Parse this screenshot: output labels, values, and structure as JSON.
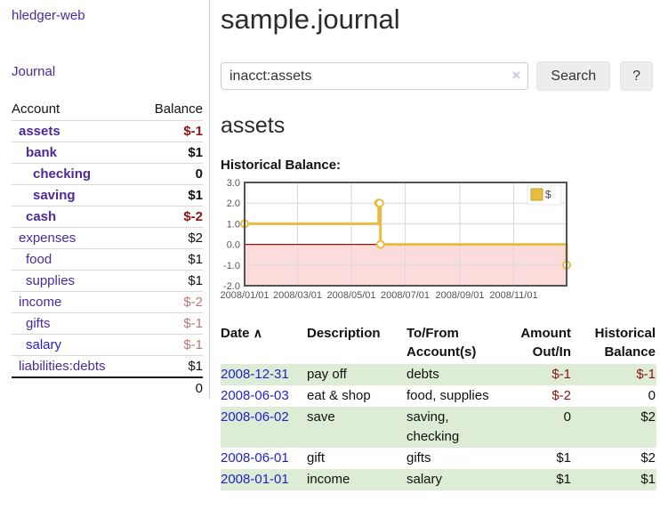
{
  "app": {
    "brand": "hledger-web"
  },
  "icons": {
    "sort_asc": "∧",
    "clear": "×"
  },
  "colors": {
    "link_purple": "#4b2a9b",
    "link_blue": "#2222cc",
    "negative_strong": "#8b1313",
    "negative_soft": "#b97676",
    "row_stripe_green": "#ddecd4",
    "divider_gray": "#cccccc"
  },
  "sidebar": {
    "journal_label": "Journal",
    "table": {
      "headers": [
        "Account",
        "Balance"
      ],
      "rows": [
        {
          "name": "assets",
          "balance": "$-1",
          "indent": 1,
          "bold": true,
          "balance_class": "neg-strong"
        },
        {
          "name": "bank",
          "balance": "$1",
          "indent": 2,
          "bold": true,
          "balance_class": ""
        },
        {
          "name": "checking",
          "balance": "0",
          "indent": 3,
          "bold": true,
          "balance_class": ""
        },
        {
          "name": "saving",
          "balance": "$1",
          "indent": 3,
          "bold": true,
          "balance_class": ""
        },
        {
          "name": "cash",
          "balance": "$-2",
          "indent": 2,
          "bold": true,
          "balance_class": "neg-strong"
        },
        {
          "name": "expenses",
          "balance": "$2",
          "indent": 1,
          "bold": false,
          "balance_class": ""
        },
        {
          "name": "food",
          "balance": "$1",
          "indent": 2,
          "bold": false,
          "balance_class": ""
        },
        {
          "name": "supplies",
          "balance": "$1",
          "indent": 2,
          "bold": false,
          "balance_class": ""
        },
        {
          "name": "income",
          "balance": "$-2",
          "indent": 1,
          "bold": false,
          "balance_class": "neg-soft"
        },
        {
          "name": "gifts",
          "balance": "$-1",
          "indent": 2,
          "bold": false,
          "balance_class": "neg-soft"
        },
        {
          "name": "salary",
          "balance": "$-1",
          "indent": 2,
          "bold": false,
          "balance_class": "neg-soft",
          "link": "blue"
        },
        {
          "name": "liabilities:debts",
          "balance": "$1",
          "indent": 1,
          "bold": false,
          "balance_class": ""
        }
      ],
      "total": "0"
    }
  },
  "main": {
    "title": "sample.journal",
    "search": {
      "value": "inacct:assets",
      "button_label": "Search",
      "help_label": "?"
    },
    "account_heading": "assets",
    "chart_label": "Historical Balance:"
  },
  "chart_data": {
    "type": "line",
    "step": true,
    "title": "Historical Balance:",
    "series": [
      {
        "name": "$",
        "color": "#e8bc40",
        "points": [
          [
            "2008-01-01",
            1
          ],
          [
            "2008-06-01",
            2
          ],
          [
            "2008-06-02",
            2
          ],
          [
            "2008-06-03",
            0
          ],
          [
            "2008-12-31",
            -1
          ]
        ]
      }
    ],
    "xlim": [
      "2008-01-01",
      "2008-12-31"
    ],
    "ylim": [
      -2,
      3
    ],
    "x_ticks": [
      "2008/01/01",
      "2008/03/01",
      "2008/05/01",
      "2008/07/01",
      "2008/09/01",
      "2008/11/01"
    ],
    "y_ticks": [
      3.0,
      2.0,
      1.0,
      0.0,
      -1.0,
      -2.0
    ],
    "grid": true,
    "legend_position": "top-right",
    "negative_region_color": "#fcdbdb",
    "zero_line_color": "#a01010"
  },
  "register": {
    "headers": [
      "Date",
      "Description",
      "To/From Account(s)",
      "Amount Out/In",
      "Historical Balance"
    ],
    "rows": [
      {
        "date": "2008-12-31",
        "description": "pay off",
        "accounts": "debts",
        "amount": "$-1",
        "balance": "$-1"
      },
      {
        "date": "2008-06-03",
        "description": "eat & shop",
        "accounts": "food, supplies",
        "amount": "$-2",
        "balance": "0"
      },
      {
        "date": "2008-06-02",
        "description": "save",
        "accounts": "saving, checking",
        "amount": "0",
        "balance": "$2"
      },
      {
        "date": "2008-06-01",
        "description": "gift",
        "accounts": "gifts",
        "amount": "$1",
        "balance": "$2"
      },
      {
        "date": "2008-01-01",
        "description": "income",
        "accounts": "salary",
        "amount": "$1",
        "balance": "$1"
      }
    ]
  }
}
